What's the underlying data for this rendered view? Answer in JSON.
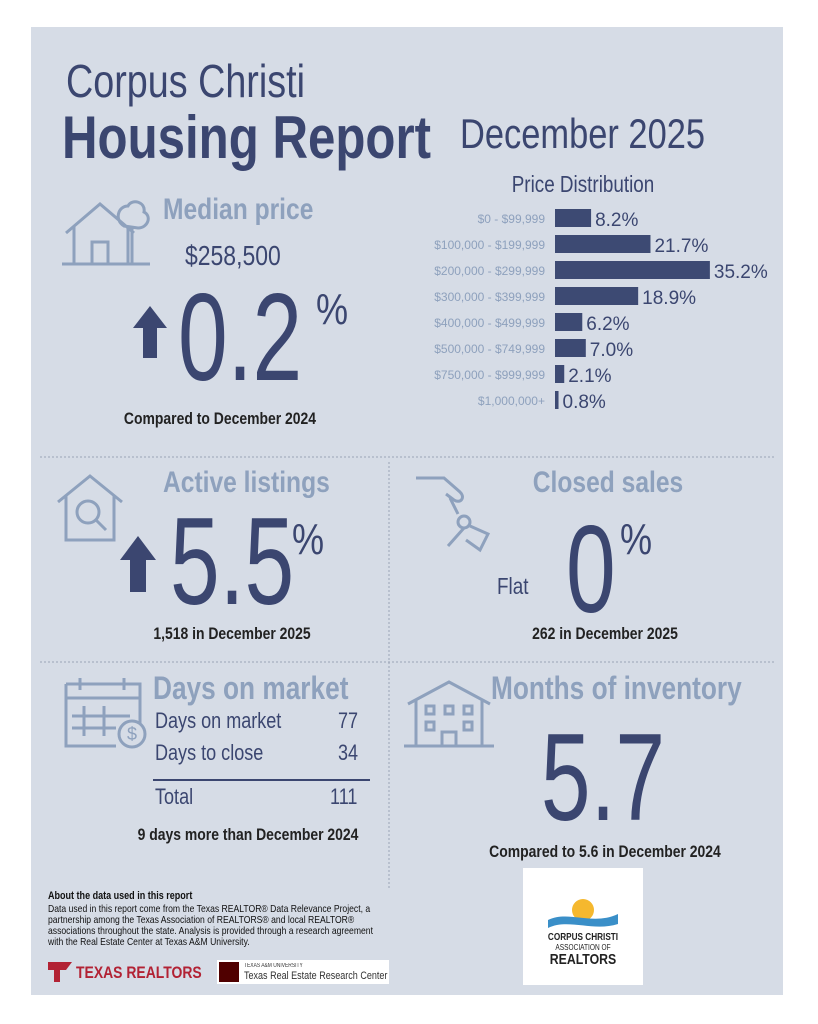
{
  "header": {
    "title_line1": "Corpus Christi",
    "title_line2": "Housing Report",
    "date": "December 2025"
  },
  "median_price": {
    "heading": "Median price",
    "price": "$258,500",
    "change": "0.2",
    "unit": "%",
    "note": "Compared to December 2024"
  },
  "chart_data": {
    "type": "bar",
    "orientation": "horizontal",
    "title": "Price Distribution",
    "categories": [
      "$0 - $99,999",
      "$100,000 - $199,999",
      "$200,000 - $299,999",
      "$300,000 - $399,999",
      "$400,000 - $499,999",
      "$500,000 - $749,999",
      "$750,000 - $999,999",
      "$1,000,000+"
    ],
    "values": [
      8.2,
      21.7,
      35.2,
      18.9,
      6.2,
      7.0,
      2.1,
      0.8
    ],
    "value_labels": [
      "8.2%",
      "21.7%",
      "35.2%",
      "18.9%",
      "6.2%",
      "7.0%",
      "2.1%",
      "0.8%"
    ],
    "color": "#3d4a73"
  },
  "active_listings": {
    "heading": "Active listings",
    "change": "5.5",
    "unit": "%",
    "note": "1,518 in December 2025"
  },
  "closed_sales": {
    "heading": "Closed sales",
    "qualifier": "Flat",
    "change": "0",
    "unit": "%",
    "note": "262 in December 2025"
  },
  "days_on_market": {
    "heading": "Days on market",
    "rows": [
      [
        "Days on market",
        "77"
      ],
      [
        "Days to close",
        "34"
      ],
      [
        "Total",
        "111"
      ]
    ],
    "note": "9 days more than December 2024"
  },
  "months_of_inventory": {
    "heading": "Months of inventory",
    "value": "5.7",
    "note": "Compared to 5.6 in December 2024"
  },
  "footer": {
    "about_title": "About the data used in this report",
    "about_text": "Data used in this report come from the Texas REALTOR® Data Relevance Project, a partnership among the Texas Association of REALTORS® and local REALTOR® associations throughout the state. Analysis is provided through a research agreement with the Real Estate Center at Texas A&M University.",
    "logo_texas_realtors": "TEXAS REALTORS",
    "logo_tamu_small": "TEXAS A&M UNIVERSITY",
    "logo_tamu": "Texas Real Estate Research Center",
    "logo_cc_line1": "CORPUS CHRISTI",
    "logo_cc_line2": "ASSOCIATION OF",
    "logo_cc_line3": "REALTORS"
  }
}
